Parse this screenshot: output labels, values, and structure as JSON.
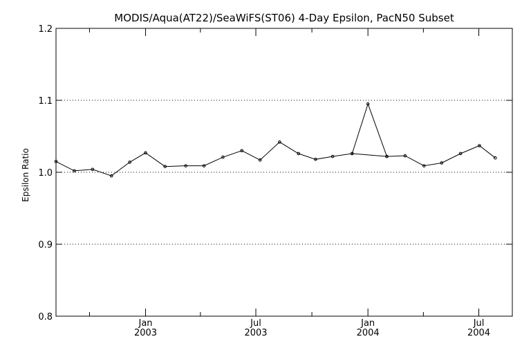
{
  "chart_data": {
    "type": "line",
    "title": "MODIS/Aqua(AT22)/SeaWiFS(ST06) 4-Day Epsilon, PacN50 Subset",
    "xlabel": "",
    "ylabel": "Epsilon Ratio",
    "xlim": [
      "2002-08-07",
      "2004-08-25"
    ],
    "ylim": [
      0.8,
      1.2
    ],
    "y_ticks": [
      {
        "value": 0.8,
        "label": "0.8"
      },
      {
        "value": 0.9,
        "label": "0.9"
      },
      {
        "value": 1.0,
        "label": "1.0"
      },
      {
        "value": 1.1,
        "label": "1.1"
      },
      {
        "value": 1.2,
        "label": "1.2"
      }
    ],
    "x_ticks": [
      {
        "date": "2003-01-01",
        "label1": "Jan",
        "label2": "2003"
      },
      {
        "date": "2003-07-01",
        "label1": "Jul",
        "label2": "2003"
      },
      {
        "date": "2004-01-01",
        "label1": "Jan",
        "label2": "2004"
      },
      {
        "date": "2004-07-01",
        "label1": "Jul",
        "label2": "2004"
      }
    ],
    "x_minor_ticks": [
      "2002-10-01",
      "2003-04-01",
      "2003-10-01",
      "2004-04-01"
    ],
    "grid": "dotted horizontal at 0.9, 1.0, 1.1",
    "series": [
      {
        "color": "#000000",
        "x": [
          "2002-08-07",
          "2002-09-06",
          "2002-10-06",
          "2002-11-06",
          "2002-12-06",
          "2003-01-01",
          "2003-02-02",
          "2003-03-08",
          "2003-04-07",
          "2003-05-08",
          "2003-06-08",
          "2003-07-08",
          "2003-08-09",
          "2003-09-09",
          "2003-10-07",
          "2003-11-04",
          "2003-12-06",
          "2004-02-01",
          "2004-03-02",
          "2004-04-02",
          "2004-05-01",
          "2004-06-01",
          "2004-07-02",
          "2004-07-28"
        ],
        "y": [
          1.015,
          1.002,
          1.004,
          0.995,
          1.014,
          1.027,
          1.008,
          1.009,
          1.009,
          1.021,
          1.03,
          1.017,
          1.042,
          1.026,
          1.018,
          1.022,
          1.026,
          1.022,
          1.023,
          1.009,
          1.013,
          1.026,
          1.037,
          1.02
        ]
      },
      {
        "color": "#000000",
        "x": [
          "2003-12-06",
          "2004-01-01",
          "2004-02-01"
        ],
        "y": [
          1.026,
          1.095,
          1.022
        ]
      }
    ]
  }
}
